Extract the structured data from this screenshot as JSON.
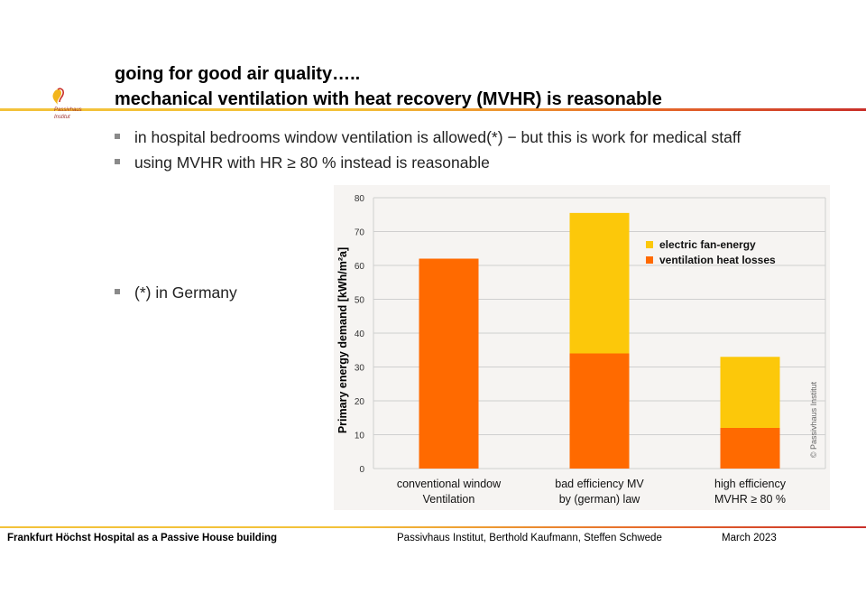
{
  "header": {
    "title_line1": "going for good air quality…..",
    "title_line2": "mechanical ventilation with heat recovery (MVHR) is reasonable"
  },
  "logo": {
    "text_line1": "Passivhaus",
    "text_line2": "Institut"
  },
  "bullets": [
    "in hospital bedrooms window ventilation is allowed(*) − but this is work for medical staff",
    "using MVHR with HR ≥ 80 % instead is reasonable",
    "(*) in Germany"
  ],
  "colors": {
    "fan": "#fcc80a",
    "heat": "#ff6a00",
    "grid": "#cfcfcf"
  },
  "chart_data": {
    "type": "bar",
    "stacked": true,
    "categories": [
      [
        "conventional window",
        "Ventilation"
      ],
      [
        "bad efficiency MV",
        "by (german) law"
      ],
      [
        "high efficiency",
        "MVHR ≥ 80 %"
      ]
    ],
    "series": [
      {
        "name": "ventilation heat losses",
        "values": [
          62,
          34,
          12
        ]
      },
      {
        "name": "electric fan-energy",
        "values": [
          0,
          41.5,
          21
        ]
      }
    ],
    "ylabel": "Primary energy demand  [kWh/m²a]",
    "ylim": [
      0,
      80
    ],
    "yticks": [
      0,
      10,
      20,
      30,
      40,
      50,
      60,
      70,
      80
    ],
    "legend_position": "top-right",
    "copyright": "© Passivhaus Institut",
    "grid": true
  },
  "footer": {
    "left": "Frankfurt Höchst Hospital  as a Passive House building",
    "center": "Passivhaus Institut,  Berthold Kaufmann, Steffen Schwede",
    "right": "March 2023"
  }
}
